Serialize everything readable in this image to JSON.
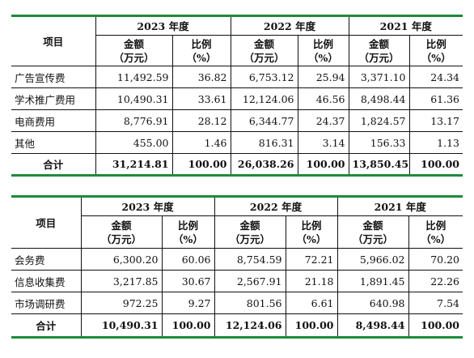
{
  "table1": {
    "col_item": "项目",
    "years": [
      "2023 年度",
      "2022 年度",
      "2021 年度"
    ],
    "amount_label": [
      "金额",
      "（万元）"
    ],
    "ratio_label": [
      "比例",
      "（%）"
    ],
    "rows": [
      {
        "name": "广告宣传费",
        "v": [
          "11,492.59",
          "36.82",
          "6,753.12",
          "25.94",
          "3,371.10",
          "24.34"
        ]
      },
      {
        "name": "学术推广费用",
        "v": [
          "10,490.31",
          "33.61",
          "12,124.06",
          "46.56",
          "8,498.44",
          "61.36"
        ]
      },
      {
        "name": "电商费用",
        "v": [
          "8,776.91",
          "28.12",
          "6,344.77",
          "24.37",
          "1,824.57",
          "13.17"
        ]
      },
      {
        "name": "其他",
        "v": [
          "455.00",
          "1.46",
          "816.31",
          "3.14",
          "156.33",
          "1.13"
        ]
      }
    ],
    "total": {
      "name": "合计",
      "v": [
        "31,214.81",
        "100.00",
        "26,038.26",
        "100.00",
        "13,850.45",
        "100.00"
      ]
    }
  },
  "table2": {
    "col_item": "项目",
    "years": [
      "2023 年度",
      "2022 年度",
      "2021 年度"
    ],
    "amount_label": [
      "金额",
      "（万元）"
    ],
    "ratio_label": [
      "比例",
      "（%）"
    ],
    "rows": [
      {
        "name": "会务费",
        "v": [
          "6,300.20",
          "60.06",
          "8,754.59",
          "72.21",
          "5,966.02",
          "70.20"
        ]
      },
      {
        "name": "信息收集费",
        "v": [
          "3,217.85",
          "30.67",
          "2,567.91",
          "21.18",
          "1,891.45",
          "22.26"
        ]
      },
      {
        "name": "市场调研费",
        "v": [
          "972.25",
          "9.27",
          "801.56",
          "6.61",
          "640.98",
          "7.54"
        ]
      }
    ],
    "total": {
      "name": "合计",
      "v": [
        "10,490.31",
        "100.00",
        "12,124.06",
        "100.00",
        "8,498.44",
        "100.00"
      ]
    }
  },
  "colors": {
    "rule": "#1e8a3a"
  }
}
